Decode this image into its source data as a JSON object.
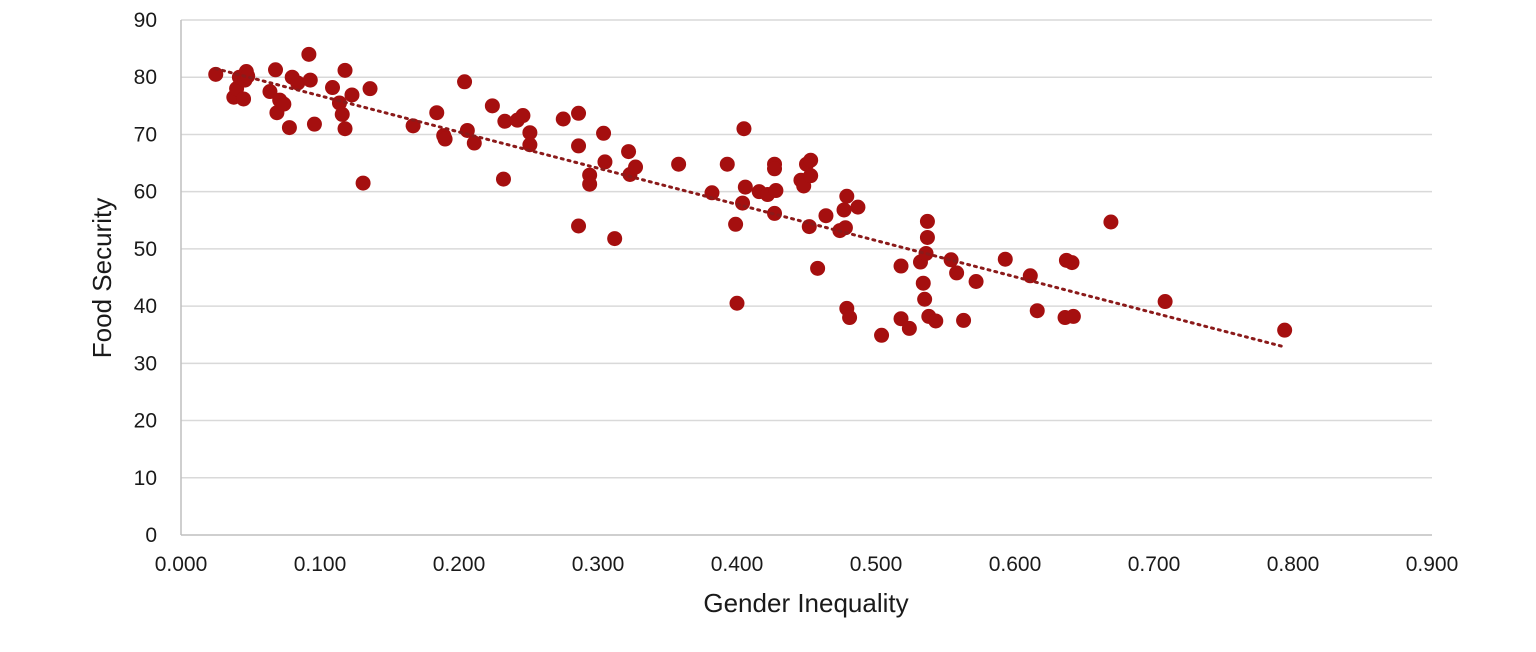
{
  "chart_data": {
    "type": "scatter",
    "title": "",
    "xlabel": "Gender Inequality",
    "ylabel": "Food Security",
    "xlim": [
      0,
      0.9
    ],
    "ylim": [
      0,
      90
    ],
    "x_ticks": [
      "0.000",
      "0.100",
      "0.200",
      "0.300",
      "0.400",
      "0.500",
      "0.600",
      "0.700",
      "0.800",
      "0.900"
    ],
    "y_ticks": [
      "0",
      "10",
      "20",
      "30",
      "40",
      "50",
      "60",
      "70",
      "80",
      "90"
    ],
    "grid": "horizontal",
    "legend": "none",
    "marker_color": "#a50f0f",
    "trendline": {
      "type": "linear",
      "style": "dotted",
      "color": "#8b1a1a",
      "x": [
        0.025,
        0.795
      ],
      "y": [
        81.5,
        32.8
      ]
    },
    "series": [
      {
        "points": [
          [
            0.025,
            80.5
          ],
          [
            0.038,
            76.5
          ],
          [
            0.04,
            78.0
          ],
          [
            0.042,
            80.0
          ],
          [
            0.045,
            76.2
          ],
          [
            0.046,
            79.5
          ],
          [
            0.047,
            81.0
          ],
          [
            0.048,
            80.2
          ],
          [
            0.064,
            77.5
          ],
          [
            0.068,
            81.3
          ],
          [
            0.069,
            73.8
          ],
          [
            0.071,
            76.0
          ],
          [
            0.074,
            75.3
          ],
          [
            0.078,
            71.2
          ],
          [
            0.08,
            80.0
          ],
          [
            0.084,
            79.0
          ],
          [
            0.092,
            84.0
          ],
          [
            0.093,
            79.5
          ],
          [
            0.096,
            71.8
          ],
          [
            0.109,
            78.2
          ],
          [
            0.114,
            75.5
          ],
          [
            0.116,
            73.5
          ],
          [
            0.118,
            81.2
          ],
          [
            0.118,
            71.0
          ],
          [
            0.123,
            76.9
          ],
          [
            0.131,
            61.5
          ],
          [
            0.136,
            78.0
          ],
          [
            0.167,
            71.5
          ],
          [
            0.184,
            73.8
          ],
          [
            0.189,
            69.8
          ],
          [
            0.19,
            69.2
          ],
          [
            0.204,
            79.2
          ],
          [
            0.206,
            70.7
          ],
          [
            0.211,
            68.5
          ],
          [
            0.224,
            75.0
          ],
          [
            0.232,
            62.2
          ],
          [
            0.233,
            72.3
          ],
          [
            0.242,
            72.5
          ],
          [
            0.246,
            73.3
          ],
          [
            0.251,
            70.3
          ],
          [
            0.251,
            68.2
          ],
          [
            0.275,
            72.7
          ],
          [
            0.286,
            73.7
          ],
          [
            0.286,
            68.0
          ],
          [
            0.286,
            54.0
          ],
          [
            0.294,
            62.9
          ],
          [
            0.294,
            61.3
          ],
          [
            0.304,
            70.2
          ],
          [
            0.305,
            65.2
          ],
          [
            0.312,
            51.8
          ],
          [
            0.322,
            67.0
          ],
          [
            0.323,
            63.0
          ],
          [
            0.327,
            64.3
          ],
          [
            0.358,
            64.8
          ],
          [
            0.382,
            59.8
          ],
          [
            0.393,
            64.8
          ],
          [
            0.399,
            54.3
          ],
          [
            0.4,
            40.5
          ],
          [
            0.404,
            58.0
          ],
          [
            0.405,
            71.0
          ],
          [
            0.406,
            60.8
          ],
          [
            0.416,
            60.0
          ],
          [
            0.422,
            59.5
          ],
          [
            0.427,
            64.8
          ],
          [
            0.427,
            64.0
          ],
          [
            0.427,
            56.2
          ],
          [
            0.428,
            60.2
          ],
          [
            0.446,
            62.0
          ],
          [
            0.448,
            61.0
          ],
          [
            0.45,
            64.8
          ],
          [
            0.452,
            53.9
          ],
          [
            0.453,
            65.5
          ],
          [
            0.453,
            62.8
          ],
          [
            0.458,
            46.6
          ],
          [
            0.464,
            55.8
          ],
          [
            0.474,
            53.2
          ],
          [
            0.477,
            56.8
          ],
          [
            0.478,
            53.7
          ],
          [
            0.479,
            59.2
          ],
          [
            0.479,
            39.6
          ],
          [
            0.481,
            38.0
          ],
          [
            0.487,
            57.3
          ],
          [
            0.504,
            34.9
          ],
          [
            0.518,
            37.8
          ],
          [
            0.518,
            47.0
          ],
          [
            0.524,
            36.1
          ],
          [
            0.532,
            47.7
          ],
          [
            0.534,
            44.0
          ],
          [
            0.535,
            41.2
          ],
          [
            0.536,
            49.2
          ],
          [
            0.537,
            54.8
          ],
          [
            0.537,
            52.0
          ],
          [
            0.538,
            38.2
          ],
          [
            0.543,
            37.4
          ],
          [
            0.554,
            48.1
          ],
          [
            0.558,
            45.8
          ],
          [
            0.563,
            37.5
          ],
          [
            0.572,
            44.3
          ],
          [
            0.593,
            48.2
          ],
          [
            0.611,
            45.3
          ],
          [
            0.616,
            39.2
          ],
          [
            0.636,
            38.0
          ],
          [
            0.637,
            48.0
          ],
          [
            0.641,
            47.6
          ],
          [
            0.642,
            38.2
          ],
          [
            0.669,
            54.7
          ],
          [
            0.708,
            40.8
          ],
          [
            0.794,
            35.8
          ]
        ]
      }
    ]
  }
}
